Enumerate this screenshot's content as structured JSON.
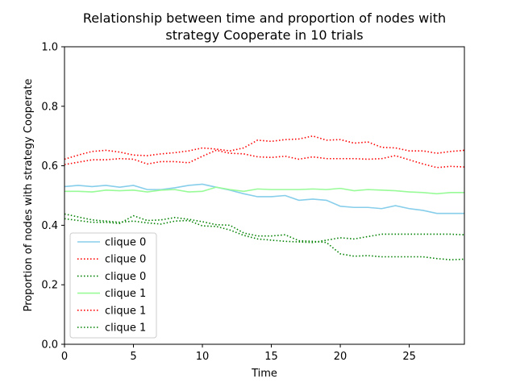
{
  "chart_data": {
    "type": "line",
    "title_line1": "Relationship between time and proportion of nodes with",
    "title_line2": "strategy Cooperate in 10 trials",
    "xlabel": "Time",
    "ylabel": "Proportion of nodes with strategy Cooperate",
    "xlim": [
      0,
      29
    ],
    "ylim": [
      0.0,
      1.0
    ],
    "xticks": [
      0,
      5,
      10,
      15,
      20,
      25
    ],
    "xtick_labels": [
      "0",
      "5",
      "10",
      "15",
      "20",
      "25"
    ],
    "yticks": [
      0.0,
      0.2,
      0.4,
      0.6,
      0.8,
      1.0
    ],
    "ytick_labels": [
      "0.0",
      "0.2",
      "0.4",
      "0.6",
      "0.8",
      "1.0"
    ],
    "grid": false,
    "legend_position": "lower-left",
    "x": [
      0,
      1,
      2,
      3,
      4,
      5,
      6,
      7,
      8,
      9,
      10,
      11,
      12,
      13,
      14,
      15,
      16,
      17,
      18,
      19,
      20,
      21,
      22,
      23,
      24,
      25,
      26,
      27,
      28,
      29
    ],
    "series": [
      {
        "name": "clique 0",
        "color": "#87ceeb",
        "style": "solid",
        "values": [
          0.53,
          0.534,
          0.53,
          0.534,
          0.528,
          0.534,
          0.52,
          0.52,
          0.526,
          0.534,
          0.538,
          0.528,
          0.518,
          0.506,
          0.496,
          0.496,
          0.5,
          0.484,
          0.488,
          0.484,
          0.464,
          0.46,
          0.46,
          0.456,
          0.466,
          0.456,
          0.45,
          0.44,
          0.44,
          0.44
        ]
      },
      {
        "name": "clique 0",
        "color": "#ff0000",
        "style": "dotted",
        "values": [
          0.622,
          0.636,
          0.648,
          0.652,
          0.646,
          0.636,
          0.634,
          0.64,
          0.644,
          0.65,
          0.66,
          0.656,
          0.65,
          0.66,
          0.686,
          0.682,
          0.688,
          0.69,
          0.7,
          0.686,
          0.688,
          0.676,
          0.68,
          0.662,
          0.66,
          0.65,
          0.65,
          0.642,
          0.648,
          0.652
        ]
      },
      {
        "name": "clique 0",
        "color": "#008000",
        "style": "dotted",
        "values": [
          0.422,
          0.416,
          0.41,
          0.41,
          0.406,
          0.432,
          0.416,
          0.418,
          0.426,
          0.42,
          0.412,
          0.402,
          0.4,
          0.374,
          0.364,
          0.364,
          0.368,
          0.348,
          0.346,
          0.342,
          0.304,
          0.296,
          0.298,
          0.294,
          0.294,
          0.294,
          0.294,
          0.288,
          0.284,
          0.286
        ]
      },
      {
        "name": "clique 1",
        "color": "#98fb98",
        "style": "solid",
        "values": [
          0.514,
          0.514,
          0.512,
          0.518,
          0.516,
          0.518,
          0.512,
          0.518,
          0.52,
          0.512,
          0.514,
          0.528,
          0.52,
          0.514,
          0.522,
          0.52,
          0.52,
          0.52,
          0.522,
          0.52,
          0.524,
          0.516,
          0.52,
          0.518,
          0.516,
          0.512,
          0.51,
          0.506,
          0.51,
          0.51
        ]
      },
      {
        "name": "clique 1",
        "color": "#ff0000",
        "style": "dotted",
        "values": [
          0.604,
          0.612,
          0.62,
          0.62,
          0.624,
          0.622,
          0.606,
          0.614,
          0.614,
          0.61,
          0.632,
          0.652,
          0.642,
          0.64,
          0.63,
          0.628,
          0.632,
          0.622,
          0.63,
          0.624,
          0.624,
          0.624,
          0.622,
          0.624,
          0.634,
          0.62,
          0.606,
          0.594,
          0.598,
          0.596
        ]
      },
      {
        "name": "clique 1",
        "color": "#008000",
        "style": "dotted",
        "values": [
          0.438,
          0.428,
          0.418,
          0.414,
          0.41,
          0.414,
          0.408,
          0.404,
          0.414,
          0.416,
          0.398,
          0.396,
          0.384,
          0.366,
          0.354,
          0.35,
          0.346,
          0.344,
          0.342,
          0.35,
          0.358,
          0.354,
          0.362,
          0.37,
          0.37,
          0.37,
          0.37,
          0.37,
          0.37,
          0.368
        ]
      }
    ]
  }
}
